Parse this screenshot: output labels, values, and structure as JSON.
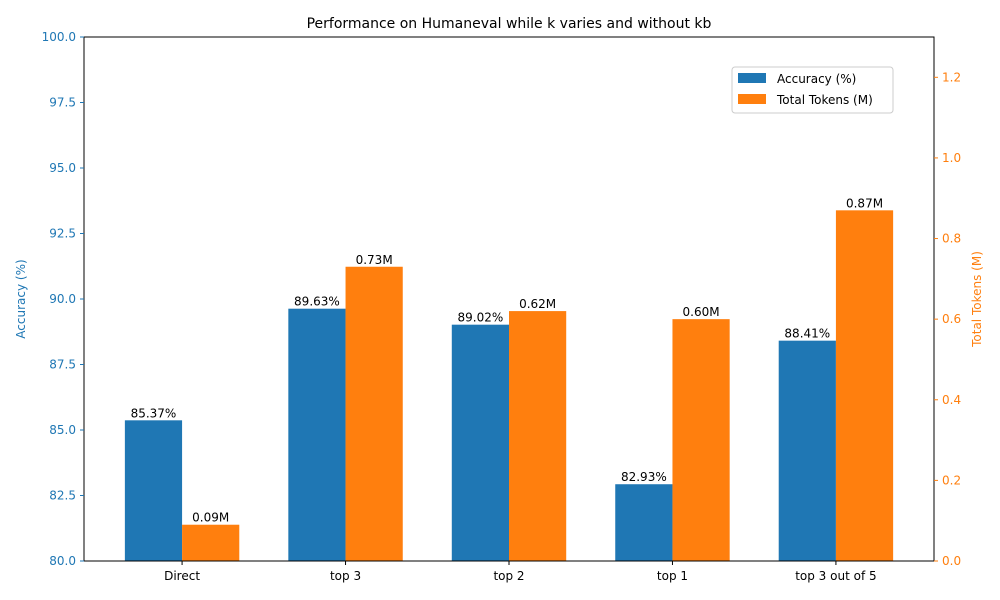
{
  "chart_data": {
    "type": "bar",
    "title": "Performance on Humaneval while k varies and without kb",
    "xlabel": "",
    "categories": [
      "Direct",
      "top 3",
      "top 2",
      "top 1",
      "top 3 out of 5"
    ],
    "series": [
      {
        "name": "Accuracy (%)",
        "axis": "left",
        "color": "#1f77b4",
        "values": [
          85.37,
          89.63,
          89.02,
          82.93,
          88.41
        ],
        "value_labels": [
          "85.37%",
          "89.63%",
          "89.02%",
          "82.93%",
          "88.41%"
        ]
      },
      {
        "name": "Total Tokens (M)",
        "axis": "right",
        "color": "#ff7f0e",
        "values": [
          0.09,
          0.73,
          0.62,
          0.6,
          0.87
        ],
        "value_labels": [
          "0.09M",
          "0.73M",
          "0.62M",
          "0.60M",
          "0.87M"
        ]
      }
    ],
    "y_left": {
      "label": "Accuracy (%)",
      "color": "#1f77b4",
      "lim": [
        80,
        100
      ],
      "ticks": [
        80.0,
        82.5,
        85.0,
        87.5,
        90.0,
        92.5,
        95.0,
        97.5,
        100.0
      ],
      "tick_labels": [
        "80.0",
        "82.5",
        "85.0",
        "87.5",
        "90.0",
        "92.5",
        "95.0",
        "97.5",
        "100.0"
      ]
    },
    "y_right": {
      "label": "Total Tokens (M)",
      "color": "#ff7f0e",
      "lim": [
        0,
        1.3
      ],
      "ticks": [
        0.0,
        0.2,
        0.4,
        0.6,
        0.8,
        1.0,
        1.2
      ],
      "tick_labels": [
        "0.0",
        "0.2",
        "0.4",
        "0.6",
        "0.8",
        "1.0",
        "1.2"
      ]
    },
    "grid": false,
    "legend": "top-right"
  }
}
